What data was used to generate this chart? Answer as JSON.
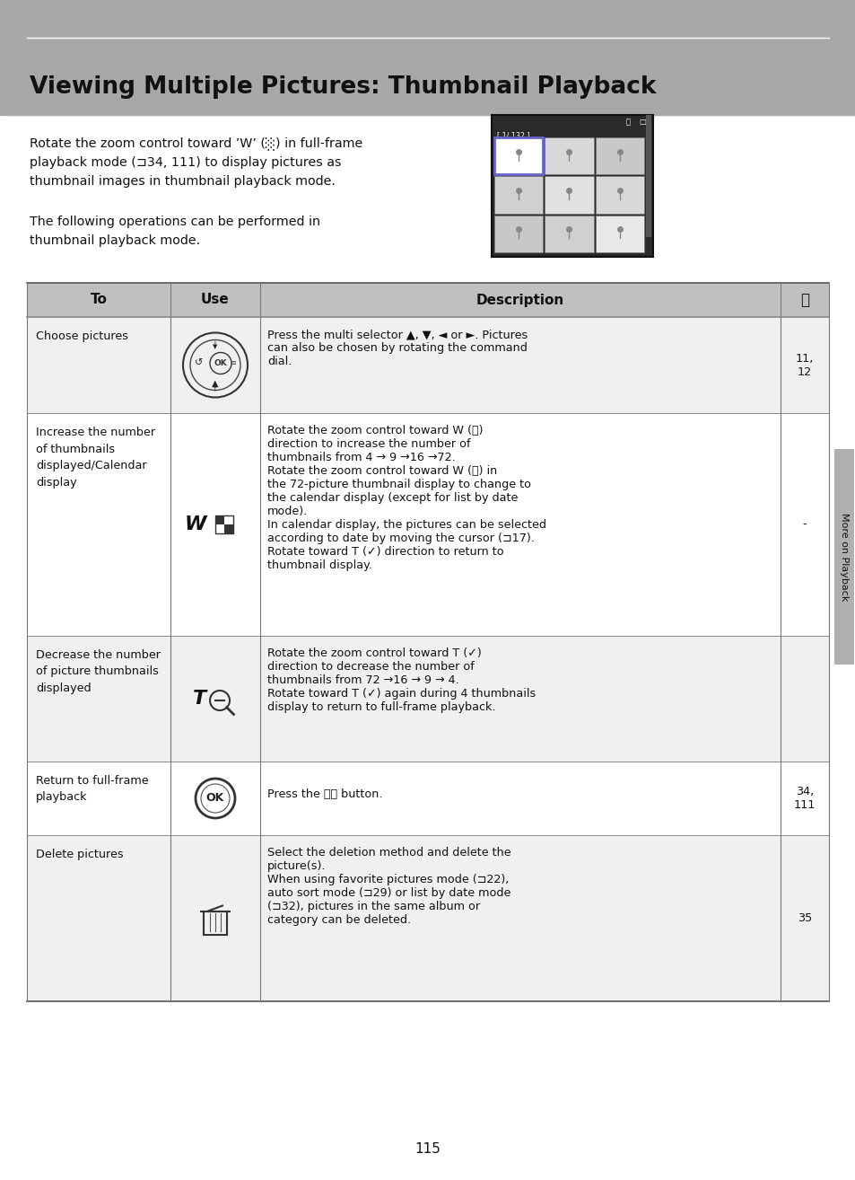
{
  "title": "Viewing Multiple Pictures: Thumbnail Playback",
  "bg_color": "#ffffff",
  "header_bg": "#b0b0b0",
  "page_number": "115",
  "sidebar_text": "More on Playback",
  "row0_to": "Choose pictures",
  "row0_desc": "Press the multi selector ▲, ▼, ◄ or ►. Pictures\ncan also be chosen by rotating the command\ndial.",
  "row0_ref": "11,\n12",
  "row1_to": "Increase the number\nof thumbnails\ndisplayed/Calendar\ndisplay",
  "row1_desc_lines": [
    "Rotate the zoom control toward W (⬛)",
    "direction to increase the number of",
    "thumbnails from 4 → 9 →16 →72.",
    "Rotate the zoom control toward W (⬛) in",
    "the 72-picture thumbnail display to change to",
    "the calendar display (except for list by date",
    "mode).",
    "In calendar display, the pictures can be selected",
    "according to date by moving the cursor (⊐17).",
    "Rotate toward T (✓) direction to return to",
    "thumbnail display."
  ],
  "row1_ref": "-",
  "row2_to": "Decrease the number\nof picture thumbnails\ndisplayed",
  "row2_desc_lines": [
    "Rotate the zoom control toward T (✓)",
    "direction to decrease the number of",
    "thumbnails from 72 →16 → 9 → 4.",
    "Rotate toward T (✓) again during 4 thumbnails",
    "display to return to full-frame playback."
  ],
  "row2_ref": "-",
  "row3_to": "Return to full-frame\nplayback",
  "row3_desc": "Press the ⓀⓀ button.",
  "row3_ref": "34,\n111",
  "row4_to": "Delete pictures",
  "row4_desc_lines": [
    "Select the deletion method and delete the",
    "picture(s).",
    "When using favorite pictures mode (⊐22),",
    "auto sort mode (⊐29) or list by date mode",
    "(⊐32), pictures in the same album or",
    "category can be deleted."
  ],
  "row4_ref": "35"
}
